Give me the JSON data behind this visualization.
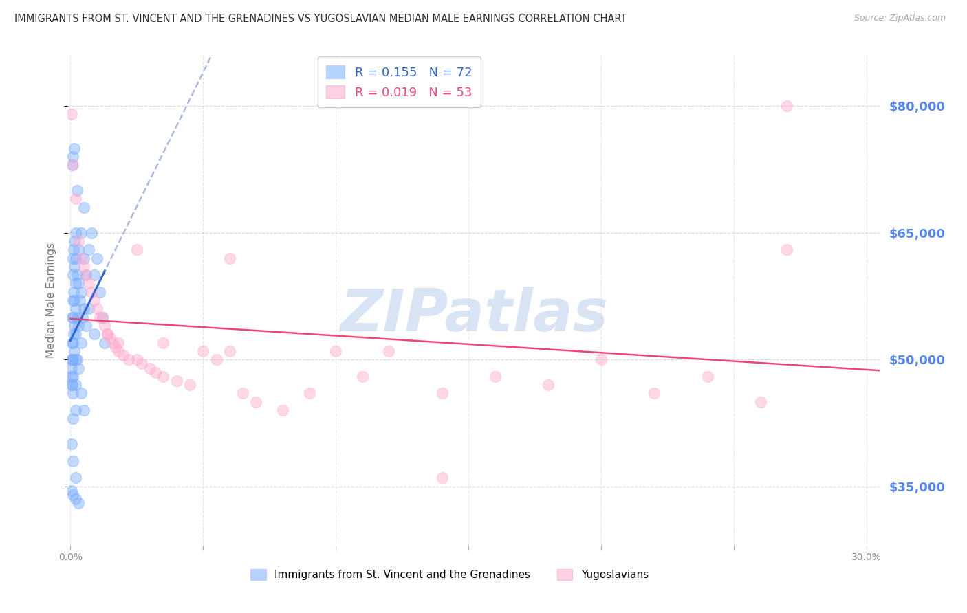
{
  "title": "IMMIGRANTS FROM ST. VINCENT AND THE GRENADINES VS YUGOSLAVIAN MEDIAN MALE EARNINGS CORRELATION CHART",
  "source": "Source: ZipAtlas.com",
  "ylabel": "Median Male Earnings",
  "ytick_values": [
    35000,
    50000,
    65000,
    80000
  ],
  "ymin": 28000,
  "ymax": 86000,
  "xmin": -0.001,
  "xmax": 0.305,
  "blue_R": 0.155,
  "blue_N": 72,
  "pink_R": 0.019,
  "pink_N": 53,
  "blue_color": "#7aadff",
  "pink_color": "#ffaacc",
  "blue_line_color": "#3366cc",
  "pink_line_color": "#ee4477",
  "dashed_line_color": "#aabbdd",
  "blue_label": "Immigrants from St. Vincent and the Grenadines",
  "pink_label": "Yugoslavians",
  "background_color": "#ffffff",
  "grid_color": "#cccccc",
  "title_color": "#333333",
  "axis_label_color": "#5588ee",
  "watermark_text": "ZIPatlas",
  "watermark_color": "#c8d8f0",
  "marker_size": 130,
  "marker_alpha": 0.45,
  "blue_scatter_x": [
    0.0005,
    0.0005,
    0.0005,
    0.0005,
    0.0007,
    0.0007,
    0.0007,
    0.0007,
    0.001,
    0.001,
    0.001,
    0.001,
    0.001,
    0.001,
    0.001,
    0.001,
    0.0012,
    0.0012,
    0.0012,
    0.0015,
    0.0015,
    0.0015,
    0.0015,
    0.0015,
    0.002,
    0.002,
    0.002,
    0.002,
    0.002,
    0.002,
    0.002,
    0.002,
    0.0025,
    0.0025,
    0.0025,
    0.003,
    0.003,
    0.003,
    0.003,
    0.0035,
    0.004,
    0.004,
    0.004,
    0.0045,
    0.005,
    0.005,
    0.005,
    0.006,
    0.006,
    0.007,
    0.007,
    0.008,
    0.009,
    0.009,
    0.01,
    0.011,
    0.012,
    0.013,
    0.0015,
    0.0025,
    0.001,
    0.0007,
    0.001,
    0.0005,
    0.001,
    0.002,
    0.0005,
    0.001,
    0.002,
    0.003,
    0.004,
    0.005
  ],
  "blue_scatter_y": [
    50000,
    49000,
    48000,
    47000,
    55000,
    52000,
    50000,
    47000,
    62000,
    60000,
    57000,
    55000,
    52000,
    50000,
    48000,
    46000,
    63000,
    58000,
    53000,
    64000,
    61000,
    57000,
    54000,
    51000,
    65000,
    62000,
    59000,
    56000,
    53000,
    50000,
    47000,
    44000,
    60000,
    55000,
    50000,
    63000,
    59000,
    54000,
    49000,
    57000,
    65000,
    58000,
    52000,
    55000,
    68000,
    62000,
    56000,
    60000,
    54000,
    63000,
    56000,
    65000,
    60000,
    53000,
    62000,
    58000,
    55000,
    52000,
    75000,
    70000,
    74000,
    73000,
    43000,
    40000,
    38000,
    36000,
    34500,
    34000,
    33500,
    33000,
    46000,
    44000
  ],
  "pink_scatter_x": [
    0.0005,
    0.001,
    0.002,
    0.003,
    0.004,
    0.005,
    0.006,
    0.007,
    0.008,
    0.009,
    0.01,
    0.011,
    0.012,
    0.013,
    0.014,
    0.015,
    0.016,
    0.017,
    0.018,
    0.02,
    0.022,
    0.025,
    0.027,
    0.03,
    0.032,
    0.035,
    0.04,
    0.045,
    0.05,
    0.055,
    0.06,
    0.065,
    0.07,
    0.08,
    0.09,
    0.1,
    0.11,
    0.12,
    0.14,
    0.16,
    0.18,
    0.2,
    0.22,
    0.24,
    0.26,
    0.27,
    0.014,
    0.018,
    0.025,
    0.035,
    0.06,
    0.14,
    0.27
  ],
  "pink_scatter_y": [
    79000,
    73000,
    69000,
    64000,
    62000,
    61000,
    60000,
    59000,
    58000,
    57000,
    56000,
    55000,
    55000,
    54000,
    53000,
    52500,
    52000,
    51500,
    51000,
    50500,
    50000,
    50000,
    49500,
    49000,
    48500,
    48000,
    47500,
    47000,
    51000,
    50000,
    51000,
    46000,
    45000,
    44000,
    46000,
    51000,
    48000,
    51000,
    46000,
    48000,
    47000,
    50000,
    46000,
    48000,
    45000,
    63000,
    53000,
    52000,
    63000,
    52000,
    62000,
    36000,
    80000
  ]
}
